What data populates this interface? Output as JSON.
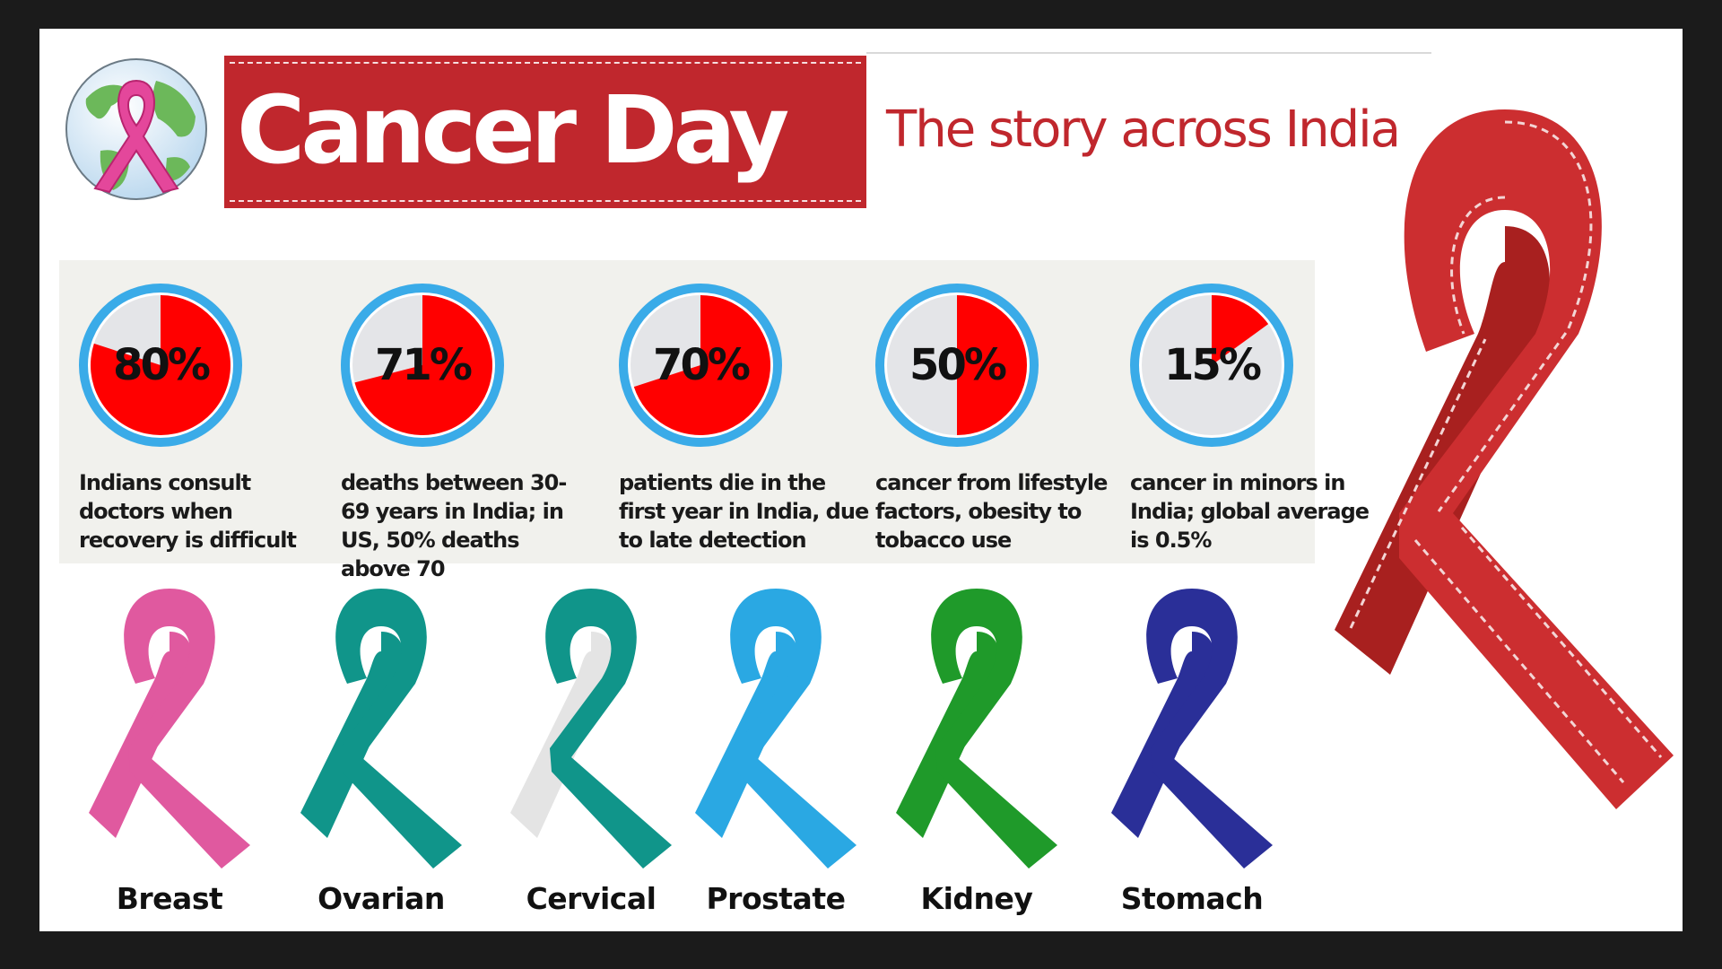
{
  "header": {
    "title": "Cancer Day",
    "subtitle": "The story across India"
  },
  "colors": {
    "banner": "#c0272d",
    "subtitle_text": "#c0272d",
    "pie_fill": "#ff0000",
    "pie_rest": "#e4e5e8",
    "pie_ring": "#3aabe8",
    "big_ribbon": "#cc2e30"
  },
  "stats": [
    {
      "value_label": "80%",
      "percent": 80,
      "description": "Indians consult doctors when recovery is difficult"
    },
    {
      "value_label": "71%",
      "percent": 71,
      "description": "deaths between 30-69 years in India; in US, 50% deaths above 70"
    },
    {
      "value_label": "70%",
      "percent": 70,
      "description": "patients die in the first year in India, due to late detection"
    },
    {
      "value_label": "50%",
      "percent": 50,
      "description": "cancer from lifestyle factors, obesity to tobacco use"
    },
    {
      "value_label": "15%",
      "percent": 15,
      "description": "cancer in minors in India; global average is 0.5%"
    }
  ],
  "ribbons": [
    {
      "label": "Breast",
      "color": "#e0599f",
      "color2": "#e0599f"
    },
    {
      "label": "Ovarian",
      "color": "#10958a",
      "color2": "#10958a"
    },
    {
      "label": "Cervical",
      "color": "#10958a",
      "color2": "#e4e4e4"
    },
    {
      "label": "Prostate",
      "color": "#2aa8e3",
      "color2": "#2aa8e3"
    },
    {
      "label": "Kidney",
      "color": "#1f9a2a",
      "color2": "#1f9a2a"
    },
    {
      "label": "Stomach",
      "color": "#2a2f98",
      "color2": "#2a2f98"
    }
  ],
  "icons": {
    "logo": "globe-pink-ribbon-icon",
    "decor": "red-ribbon-icon"
  }
}
